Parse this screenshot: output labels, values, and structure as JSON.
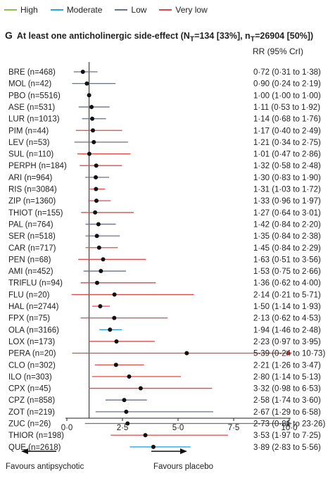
{
  "legend": [
    {
      "label": "High",
      "color": "#8cc151"
    },
    {
      "label": "Moderate",
      "color": "#2aa7d6"
    },
    {
      "label": "Low",
      "color": "#6b7280"
    },
    {
      "label": "Very low",
      "color": "#e04848"
    }
  ],
  "panel": {
    "letter": "G",
    "title": "At least one anticholinergic side-effect (N",
    "title_sub1": "T",
    "title_mid": "=134 [33%], n",
    "title_sub2": "T",
    "title_end": "=26904 [50%])"
  },
  "rr_header": "RR (95% CrI)",
  "favours_left": "Favours antipsychotic",
  "favours_right": "Favours placebo",
  "chart_data": {
    "type": "forest",
    "title": "At least one anticholinergic side-effect (NT=134 [33%], nT=26904 [50%])",
    "xlabel": "",
    "ylabel": "",
    "xlim": [
      0,
      10
    ],
    "xticks": [
      "0·0",
      "2·5",
      "5·0",
      "7·5",
      "10·0"
    ],
    "xtick_values": [
      0,
      2.5,
      5,
      7.5,
      10
    ],
    "reference_line": 1,
    "rows": [
      {
        "label": "BRE (n=468)",
        "rr": 0.72,
        "lo": 0.31,
        "hi": 1.38,
        "ci_text": "0·72 (0·31 to 1·38)",
        "confidence": "Low"
      },
      {
        "label": "MOL (n=42)",
        "rr": 0.9,
        "lo": 0.24,
        "hi": 2.19,
        "ci_text": "0·90 (0·24 to 2·19)",
        "confidence": "Low"
      },
      {
        "label": "PBO (n=5516)",
        "rr": 1.0,
        "lo": 1.0,
        "hi": 1.0,
        "ci_text": "1·00 (1·00 to 1·00)",
        "confidence": "Low"
      },
      {
        "label": "ASE (n=531)",
        "rr": 1.11,
        "lo": 0.53,
        "hi": 1.92,
        "ci_text": "1·11 (0·53 to 1·92)",
        "confidence": "Low"
      },
      {
        "label": "LUR (n=1013)",
        "rr": 1.14,
        "lo": 0.68,
        "hi": 1.76,
        "ci_text": "1·14 (0·68 to 1·76)",
        "confidence": "Low"
      },
      {
        "label": "PIM (n=44)",
        "rr": 1.17,
        "lo": 0.4,
        "hi": 2.49,
        "ci_text": "1·17 (0·40 to 2·49)",
        "confidence": "Very low"
      },
      {
        "label": "LEV (n=53)",
        "rr": 1.21,
        "lo": 0.34,
        "hi": 2.75,
        "ci_text": "1·21 (0·34 to 2·75)",
        "confidence": "Low"
      },
      {
        "label": "SUL (n=110)",
        "rr": 1.01,
        "lo": 0.47,
        "hi": 2.86,
        "ci_text": "1·01 (0·47 to 2·86)",
        "confidence": "Very low"
      },
      {
        "label": "PERPH (n=184)",
        "rr": 1.32,
        "lo": 0.58,
        "hi": 2.48,
        "ci_text": "1·32 (0·58 to 2·48)",
        "confidence": "Very low"
      },
      {
        "label": "ARI (n=964)",
        "rr": 1.3,
        "lo": 0.83,
        "hi": 1.9,
        "ci_text": "1·30 (0·83 to 1·90)",
        "confidence": "Low"
      },
      {
        "label": "RIS (n=3084)",
        "rr": 1.31,
        "lo": 1.03,
        "hi": 1.72,
        "ci_text": "1·31 (1·03 to 1·72)",
        "confidence": "Very low"
      },
      {
        "label": "ZIP (n=1360)",
        "rr": 1.33,
        "lo": 0.96,
        "hi": 1.97,
        "ci_text": "1·33 (0·96 to 1·97)",
        "confidence": "Very low"
      },
      {
        "label": "THIOT (n=155)",
        "rr": 1.27,
        "lo": 0.64,
        "hi": 3.01,
        "ci_text": "1·27 (0·64 to 3·01)",
        "confidence": "Very low"
      },
      {
        "label": "PAL (n=764)",
        "rr": 1.42,
        "lo": 0.84,
        "hi": 2.2,
        "ci_text": "1·42 (0·84 to 2·20)",
        "confidence": "Low"
      },
      {
        "label": "SER (n=518)",
        "rr": 1.35,
        "lo": 0.84,
        "hi": 2.38,
        "ci_text": "1·35 (0·84 to 2·38)",
        "confidence": "Low"
      },
      {
        "label": "CAR (n=717)",
        "rr": 1.45,
        "lo": 0.84,
        "hi": 2.29,
        "ci_text": "1·45 (0·84 to 2·29)",
        "confidence": "Very low"
      },
      {
        "label": "PEN (n=68)",
        "rr": 1.63,
        "lo": 0.51,
        "hi": 3.56,
        "ci_text": "1·63 (0·51 to 3·56)",
        "confidence": "Very low"
      },
      {
        "label": "AMI (n=452)",
        "rr": 1.53,
        "lo": 0.75,
        "hi": 2.66,
        "ci_text": "1·53 (0·75 to 2·66)",
        "confidence": "Low"
      },
      {
        "label": "TRIFLU (n=94)",
        "rr": 1.36,
        "lo": 0.62,
        "hi": 4.0,
        "ci_text": "1·36 (0·62 to 4·00)",
        "confidence": "Very low"
      },
      {
        "label": "FLU (n=20)",
        "rr": 2.14,
        "lo": 0.21,
        "hi": 5.71,
        "ci_text": "2·14 (0·21 to 5·71)",
        "confidence": "Very low"
      },
      {
        "label": "HAL (n=2744)",
        "rr": 1.5,
        "lo": 1.14,
        "hi": 1.93,
        "ci_text": "1·50 (1·14 to 1·93)",
        "confidence": "Very low"
      },
      {
        "label": "FPX (n=75)",
        "rr": 2.13,
        "lo": 0.62,
        "hi": 4.53,
        "ci_text": "2·13 (0·62 to 4·53)",
        "confidence": "Very low"
      },
      {
        "label": "OLA (n=3166)",
        "rr": 1.94,
        "lo": 1.46,
        "hi": 2.48,
        "ci_text": "1·94 (1·46 to 2·48)",
        "confidence": "Moderate"
      },
      {
        "label": "LOX (n=173)",
        "rr": 2.23,
        "lo": 0.97,
        "hi": 3.95,
        "ci_text": "2·23 (0·97 to 3·95)",
        "confidence": "Very low"
      },
      {
        "label": "PERA (n=20)",
        "rr": 5.39,
        "lo": 0.24,
        "hi": 10.73,
        "ci_text": "5·39 (0·24 to 10·73)",
        "confidence": "Very low",
        "arrow": true
      },
      {
        "label": "CLO (n=302)",
        "rr": 2.21,
        "lo": 1.26,
        "hi": 3.47,
        "ci_text": "2·21 (1·26 to 3·47)",
        "confidence": "Very low"
      },
      {
        "label": "ILO (n=303)",
        "rr": 2.8,
        "lo": 1.14,
        "hi": 5.13,
        "ci_text": "2·80 (1·14 to 5·13)",
        "confidence": "Very low"
      },
      {
        "label": "CPX (n=45)",
        "rr": 3.32,
        "lo": 0.98,
        "hi": 6.53,
        "ci_text": "3·32 (0·98 to 6·53)",
        "confidence": "Very low"
      },
      {
        "label": "CPZ (n=858)",
        "rr": 2.58,
        "lo": 1.74,
        "hi": 3.6,
        "ci_text": "2·58 (1·74 to 3·60)",
        "confidence": "Low"
      },
      {
        "label": "ZOT (n=219)",
        "rr": 2.67,
        "lo": 1.29,
        "hi": 6.58,
        "ci_text": "2·67 (1·29 to 6·58)",
        "confidence": "Low"
      },
      {
        "label": "ZUC (n=26)",
        "rr": 2.73,
        "lo": 0.81,
        "hi": 23.26,
        "ci_text": "2·73 (0·81 to 23·26)",
        "confidence": "Low",
        "arrow": true
      },
      {
        "label": "THIOR (n=198)",
        "rr": 3.53,
        "lo": 1.97,
        "hi": 7.25,
        "ci_text": "3·53 (1·97 to 7·25)",
        "confidence": "Very low"
      },
      {
        "label": "QUE (n=2618)",
        "rr": 3.89,
        "lo": 2.83,
        "hi": 5.56,
        "ci_text": "3·89 (2·83 to 5·56)",
        "confidence": "Moderate"
      }
    ]
  }
}
